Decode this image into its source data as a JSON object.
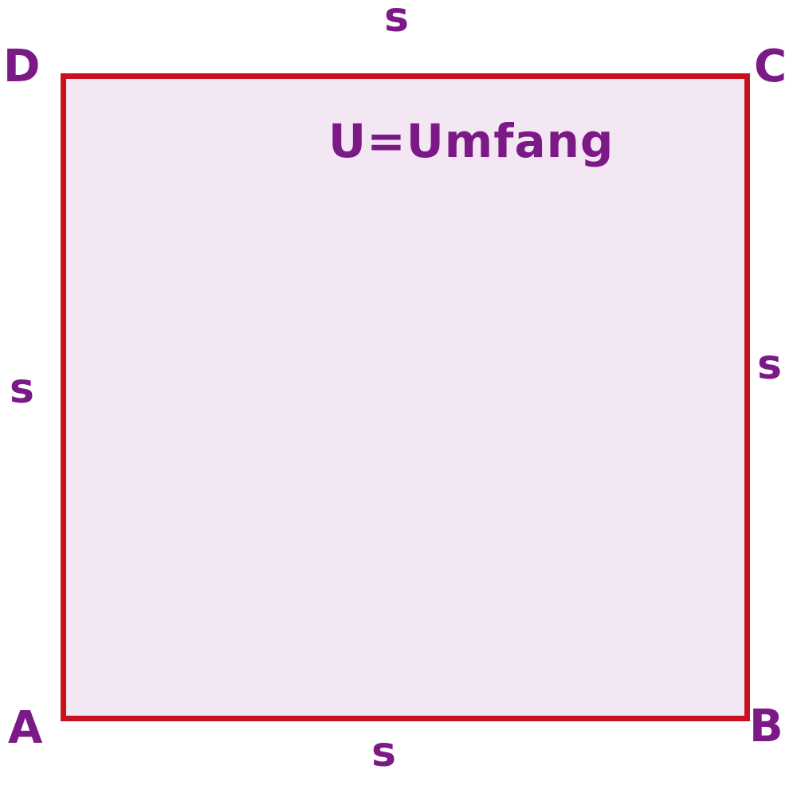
{
  "diagram": {
    "vertices": {
      "a": "A",
      "b": "B",
      "c": "C",
      "d": "D"
    },
    "sides": {
      "top": "s",
      "left": "s",
      "right": "s",
      "bottom": "s"
    },
    "note": "U=Umfang",
    "colors": {
      "outline": "#c8101f",
      "fill": "#f4e7f4",
      "text": "#7b1a86"
    }
  }
}
